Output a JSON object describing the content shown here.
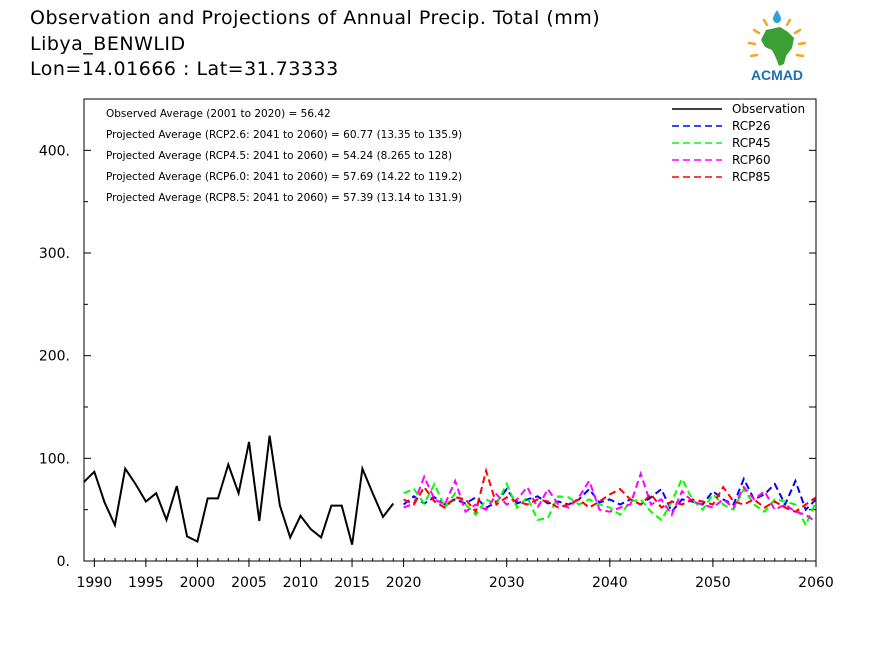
{
  "header": {
    "title": "Observation and Projections of Annual Precip. Total (mm)",
    "location": "Libya_BENWLID",
    "coords": "Lon=14.01666 : Lat=31.73333"
  },
  "logo": {
    "text": "ACMAD"
  },
  "chart_data": {
    "type": "line",
    "xlim": [
      1989,
      2060
    ],
    "ylim": [
      0,
      450
    ],
    "x_ticks": [
      1990,
      1995,
      2000,
      2005,
      2010,
      2015,
      2020,
      2030,
      2040,
      2050,
      2060
    ],
    "y_ticks": [
      0,
      100,
      200,
      300,
      400
    ],
    "y_tick_labels": [
      "0.",
      "100.",
      "200.",
      "300.",
      "400."
    ],
    "grid": false,
    "legend_position": "top-right",
    "annotations": [
      "Observed Average (2001 to 2020) = 56.42",
      "Projected Average (RCP2.6: 2041 to 2060) = 60.77 (13.35 to 135.9)",
      "Projected Average (RCP4.5: 2041 to 2060) = 54.24 (8.265 to 128)",
      "Projected Average (RCP6.0: 2041 to 2060) = 57.69 (14.22 to 119.2)",
      "Projected Average (RCP8.5: 2041 to 2060) = 57.39 (13.14 to 131.9)"
    ],
    "series": [
      {
        "name": "Observation",
        "color": "#000000",
        "dashed": false,
        "x": [
          1989,
          1990,
          1991,
          1992,
          1993,
          1994,
          1995,
          1996,
          1997,
          1998,
          1999,
          2000,
          2001,
          2002,
          2003,
          2004,
          2005,
          2006,
          2007,
          2008,
          2009,
          2010,
          2011,
          2012,
          2013,
          2014,
          2015,
          2016,
          2017,
          2018,
          2019
        ],
        "values": [
          77,
          87,
          57,
          35,
          90,
          75,
          58,
          66,
          40,
          73,
          24,
          19,
          61,
          61,
          94,
          66,
          116,
          39,
          122,
          54,
          23,
          44,
          31,
          23,
          54,
          54,
          16,
          90,
          66,
          43,
          56
        ]
      },
      {
        "name": "RCP26",
        "color": "#0000ff",
        "dashed": true,
        "x": [
          2020,
          2021,
          2022,
          2023,
          2024,
          2025,
          2026,
          2027,
          2028,
          2029,
          2030,
          2031,
          2032,
          2033,
          2034,
          2035,
          2036,
          2037,
          2038,
          2039,
          2040,
          2041,
          2042,
          2043,
          2044,
          2045,
          2046,
          2047,
          2048,
          2049,
          2050,
          2051,
          2052,
          2053,
          2054,
          2055,
          2056,
          2057,
          2058,
          2059,
          2060
        ],
        "values": [
          55,
          63,
          56,
          62,
          55,
          60,
          56,
          62,
          52,
          57,
          70,
          56,
          60,
          63,
          56,
          58,
          55,
          60,
          70,
          57,
          60,
          55,
          60,
          55,
          62,
          70,
          48,
          60,
          58,
          55,
          68,
          60,
          55,
          80,
          60,
          65,
          75,
          55,
          78,
          50,
          60
        ]
      },
      {
        "name": "RCP45",
        "color": "#00ff00",
        "dashed": true,
        "x": [
          2020,
          2021,
          2022,
          2023,
          2024,
          2025,
          2026,
          2027,
          2028,
          2029,
          2030,
          2031,
          2032,
          2033,
          2034,
          2035,
          2036,
          2037,
          2038,
          2039,
          2040,
          2041,
          2042,
          2043,
          2044,
          2045,
          2046,
          2047,
          2048,
          2049,
          2050,
          2051,
          2052,
          2053,
          2054,
          2055,
          2056,
          2057,
          2058,
          2059,
          2060
        ],
        "values": [
          66,
          70,
          56,
          75,
          52,
          66,
          55,
          45,
          60,
          55,
          75,
          52,
          62,
          40,
          42,
          63,
          62,
          55,
          60,
          55,
          52,
          45,
          58,
          60,
          48,
          40,
          58,
          80,
          60,
          50,
          65,
          55,
          50,
          70,
          55,
          48,
          60,
          58,
          55,
          35,
          58
        ]
      },
      {
        "name": "RCP60",
        "color": "#ff00ff",
        "dashed": true,
        "x": [
          2020,
          2021,
          2022,
          2023,
          2024,
          2025,
          2026,
          2027,
          2028,
          2029,
          2030,
          2031,
          2032,
          2033,
          2034,
          2035,
          2036,
          2037,
          2038,
          2039,
          2040,
          2041,
          2042,
          2043,
          2044,
          2045,
          2046,
          2047,
          2048,
          2049,
          2050,
          2051,
          2052,
          2053,
          2054,
          2055,
          2056,
          2057,
          2058,
          2059,
          2060
        ],
        "values": [
          52,
          56,
          82,
          60,
          55,
          78,
          48,
          55,
          50,
          65,
          55,
          60,
          72,
          52,
          70,
          55,
          52,
          62,
          78,
          50,
          48,
          52,
          55,
          85,
          55,
          60,
          45,
          68,
          58,
          55,
          52,
          60,
          52,
          72,
          60,
          68,
          50,
          55,
          48,
          45,
          38
        ]
      },
      {
        "name": "RCP85",
        "color": "#ff0000",
        "dashed": true,
        "x": [
          2020,
          2021,
          2022,
          2023,
          2024,
          2025,
          2026,
          2027,
          2028,
          2029,
          2030,
          2031,
          2032,
          2033,
          2034,
          2035,
          2036,
          2037,
          2038,
          2039,
          2040,
          2041,
          2042,
          2043,
          2044,
          2045,
          2046,
          2047,
          2048,
          2049,
          2050,
          2051,
          2052,
          2053,
          2054,
          2055,
          2056,
          2057,
          2058,
          2059,
          2060
        ],
        "values": [
          60,
          55,
          72,
          58,
          52,
          62,
          60,
          48,
          88,
          55,
          62,
          58,
          55,
          60,
          58,
          52,
          55,
          60,
          52,
          58,
          65,
          70,
          60,
          55,
          65,
          52,
          58,
          55,
          60,
          58,
          55,
          72,
          58,
          55,
          60,
          52,
          58,
          52,
          48,
          55,
          62
        ]
      }
    ]
  }
}
